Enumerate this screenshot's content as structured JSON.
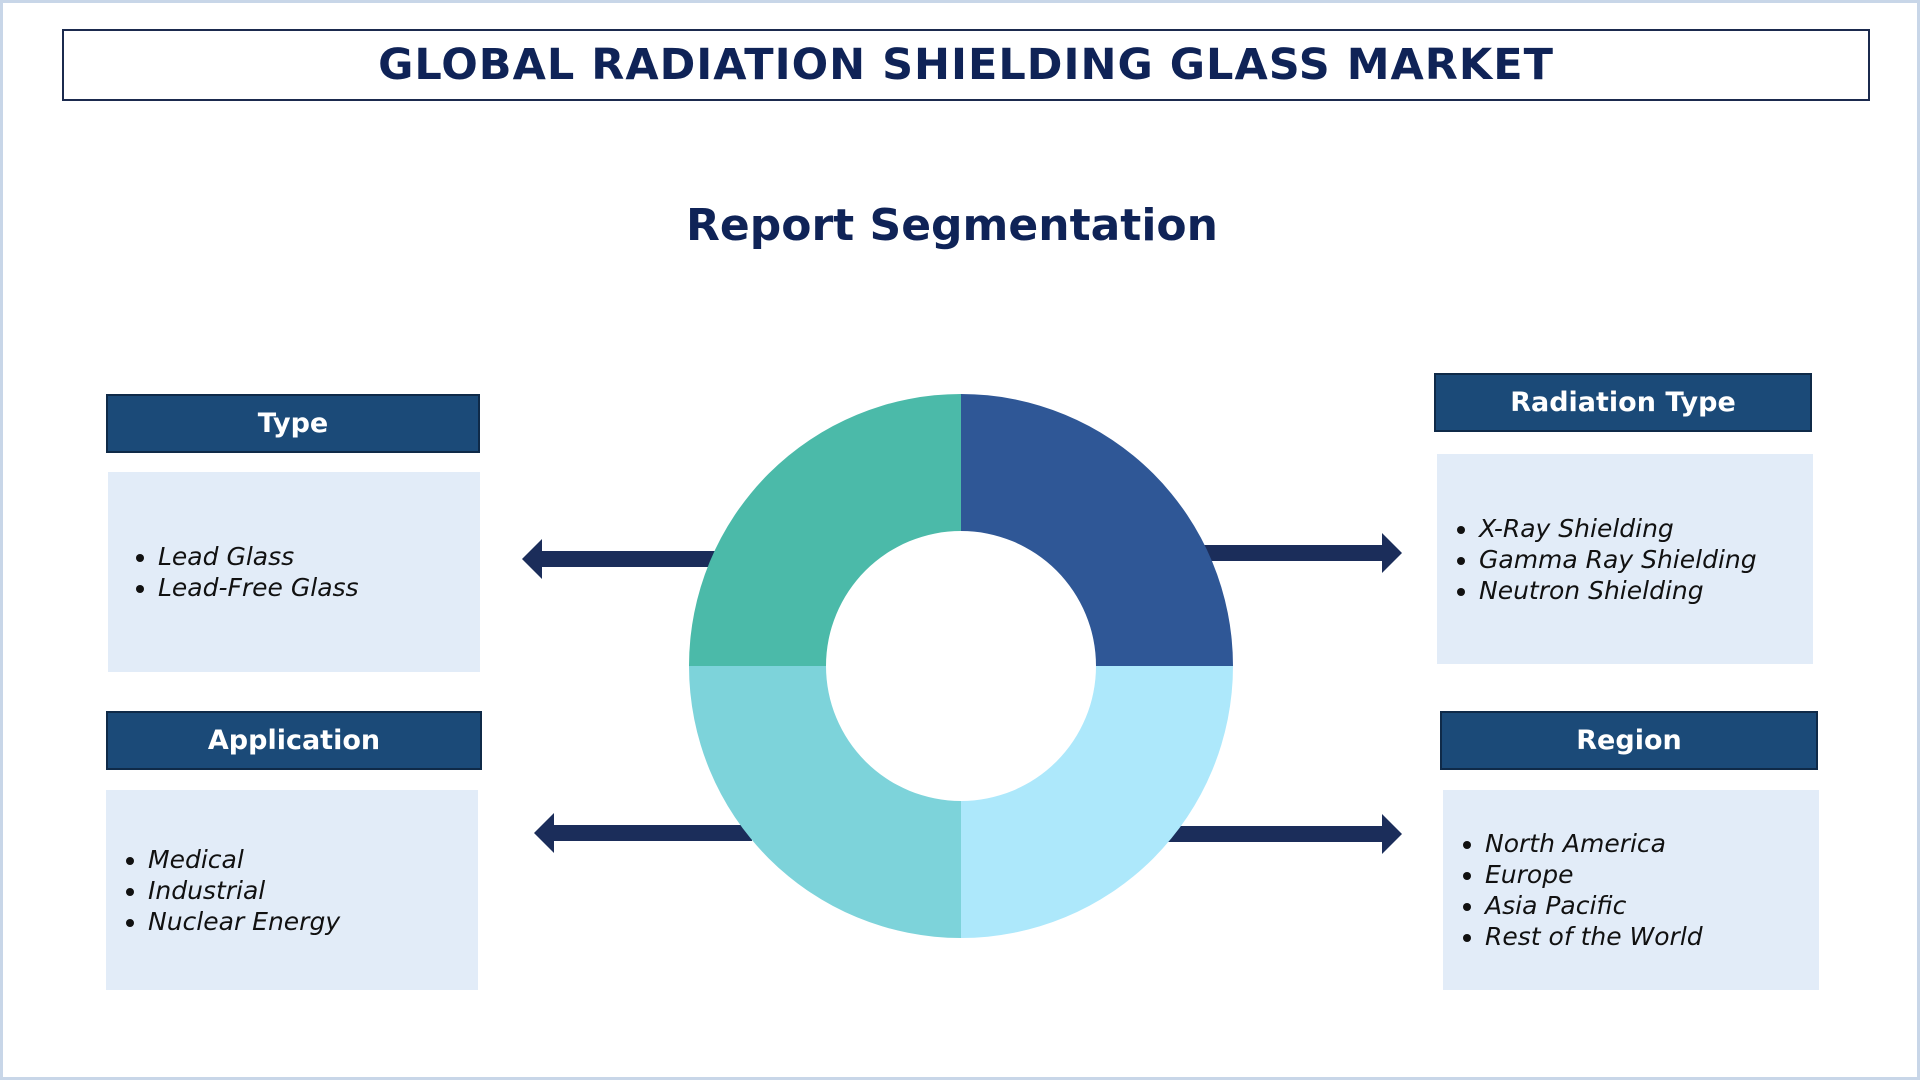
{
  "header": {
    "title": "GLOBAL RADIATION SHIELDING GLASS MARKET",
    "subtitle": "Report Segmentation"
  },
  "segments": {
    "type": {
      "title": "Type",
      "items": [
        "Lead Glass",
        "Lead-Free Glass"
      ]
    },
    "application": {
      "title": "Application",
      "items": [
        "Medical",
        "Industrial",
        "Nuclear Energy"
      ]
    },
    "radiation_type": {
      "title": "Radiation Type",
      "items": [
        "X-Ray Shielding",
        "Gamma Ray Shielding",
        "Neutron Shielding"
      ]
    },
    "region": {
      "title": "Region",
      "items": [
        "North America",
        "Europe",
        "Asia Pacific",
        "Rest of the World"
      ]
    }
  },
  "colors": {
    "title_text": "#0f2357",
    "header_fill": "#1b4a78",
    "body_fill": "#e2ecf8",
    "arrow": "#1b2d5a",
    "donut_top_right": "#2f5796",
    "donut_top_left": "#4bbaa9",
    "donut_bottom_left": "#7dd3da",
    "donut_bottom_right": "#ade8fb"
  }
}
